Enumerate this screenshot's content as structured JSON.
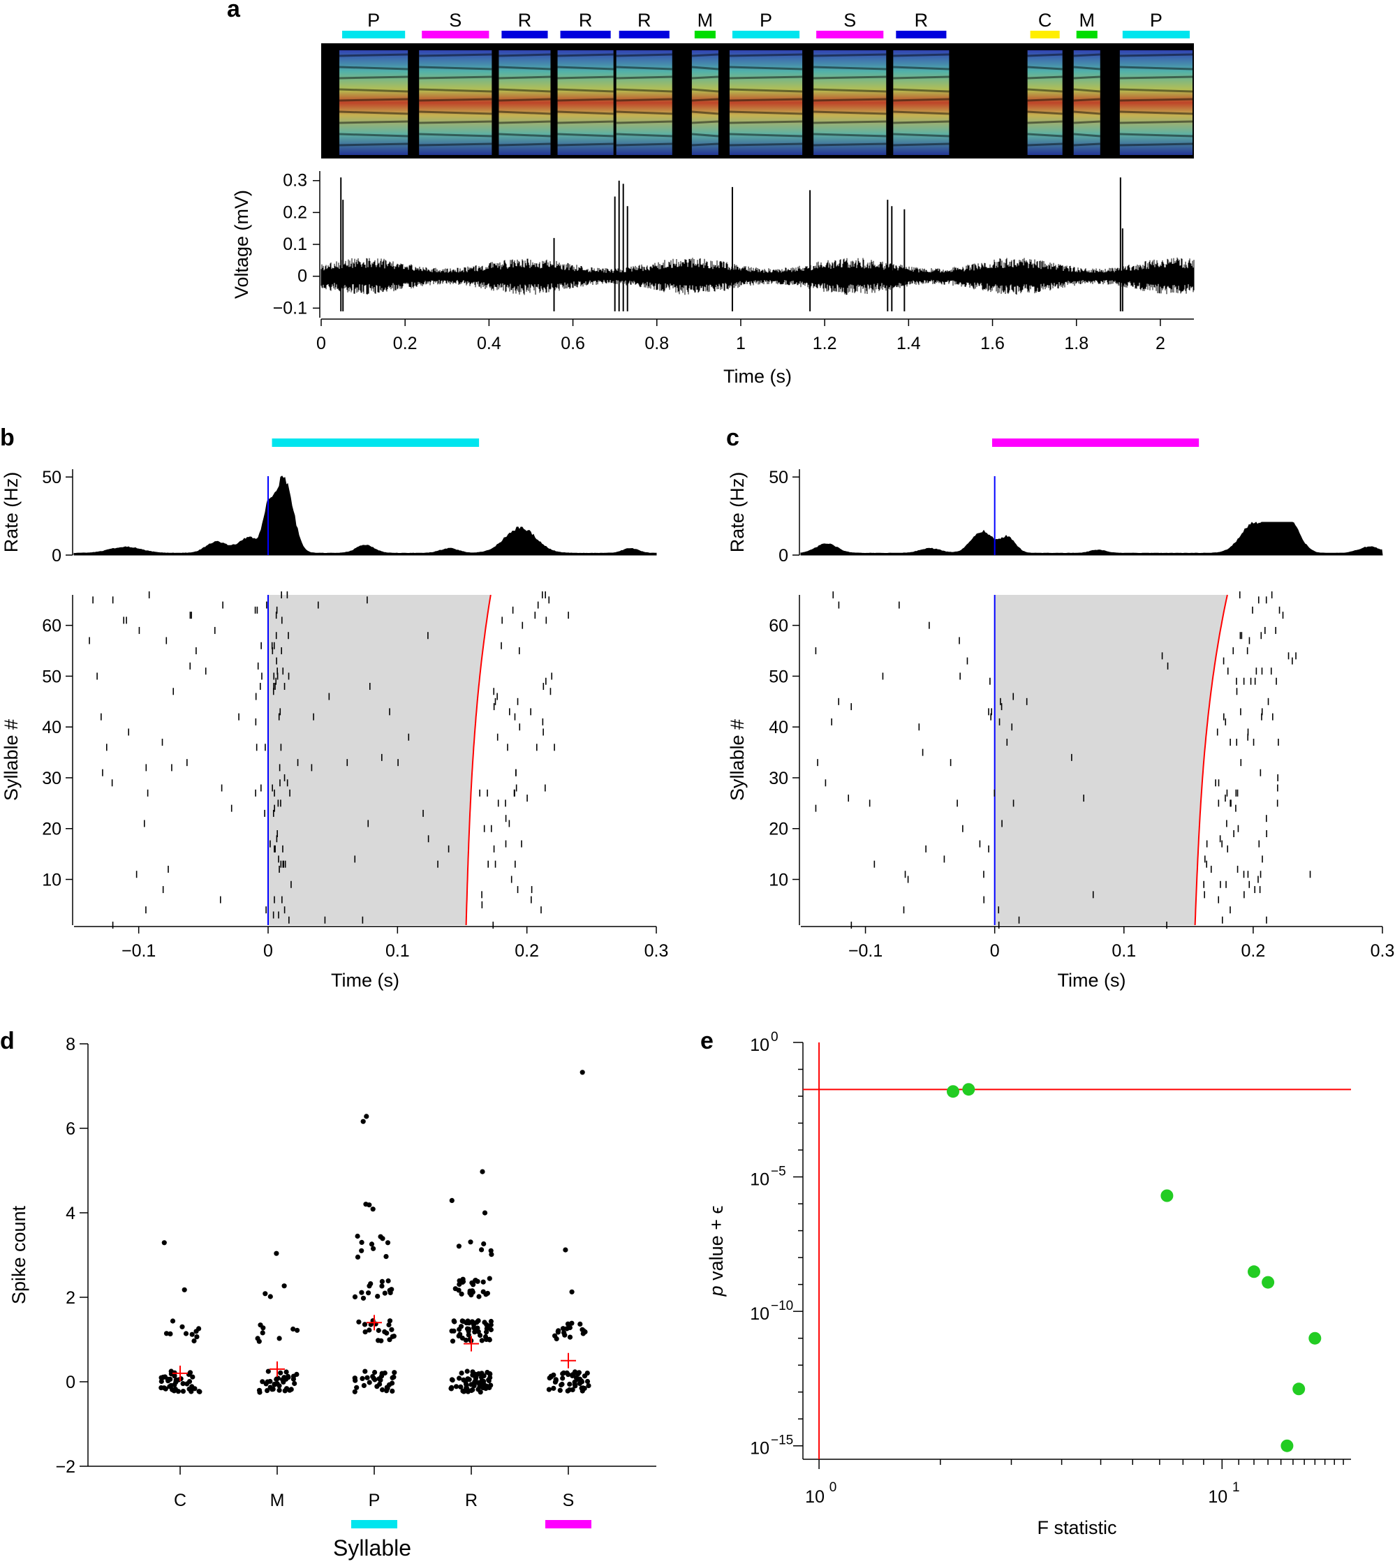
{
  "figure": {
    "panels": [
      "a",
      "b",
      "c",
      "d",
      "e"
    ]
  },
  "chart_data": [
    {
      "id": "a",
      "type": "line",
      "title": "",
      "song_syllables": [
        {
          "label": "P",
          "color": "#00e5ee",
          "start": 0.05,
          "end": 0.2
        },
        {
          "label": "S",
          "color": "#ff00ff",
          "start": 0.24,
          "end": 0.4
        },
        {
          "label": "R",
          "color": "#0000dd",
          "start": 0.43,
          "end": 0.54
        },
        {
          "label": "R",
          "color": "#0000dd",
          "start": 0.57,
          "end": 0.69
        },
        {
          "label": "R",
          "color": "#0000dd",
          "start": 0.71,
          "end": 0.83
        },
        {
          "label": "M",
          "color": "#00dd00",
          "start": 0.89,
          "end": 0.94
        },
        {
          "label": "P",
          "color": "#00e5ee",
          "start": 0.98,
          "end": 1.14
        },
        {
          "label": "S",
          "color": "#ff00ff",
          "start": 1.18,
          "end": 1.34
        },
        {
          "label": "R",
          "color": "#0000dd",
          "start": 1.37,
          "end": 1.49
        },
        {
          "label": "C",
          "color": "#ffee00",
          "start": 1.69,
          "end": 1.76
        },
        {
          "label": "M",
          "color": "#00dd00",
          "start": 1.8,
          "end": 1.85
        },
        {
          "label": "P",
          "color": "#00e5ee",
          "start": 1.91,
          "end": 2.07
        }
      ],
      "xlabel": "Time (s)",
      "ylabel": "Voltage (mV)",
      "xlim": [
        0,
        2.08
      ],
      "ylim": [
        -0.13,
        0.33
      ],
      "xticks": [
        0,
        0.2,
        0.4,
        0.6,
        0.8,
        1,
        1.2,
        1.4,
        1.6,
        1.8,
        2
      ],
      "xtick_labels": [
        "0",
        "0.2",
        "0.4",
        "0.6",
        "0.8",
        "1",
        "1.2",
        "1.4",
        "1.6",
        "1.8",
        "2"
      ],
      "yticks": [
        -0.1,
        0,
        0.1,
        0.2,
        0.3
      ],
      "ytick_labels": [
        "−0.1",
        "0",
        "0.1",
        "0.2",
        "0.3"
      ],
      "spikes": [
        {
          "t": 0.047,
          "v": 0.31
        },
        {
          "t": 0.052,
          "v": 0.24
        },
        {
          "t": 0.555,
          "v": 0.12
        },
        {
          "t": 0.7,
          "v": 0.25
        },
        {
          "t": 0.71,
          "v": 0.3
        },
        {
          "t": 0.72,
          "v": 0.29
        },
        {
          "t": 0.73,
          "v": 0.22
        },
        {
          "t": 0.98,
          "v": 0.28
        },
        {
          "t": 1.165,
          "v": 0.27
        },
        {
          "t": 1.35,
          "v": 0.24
        },
        {
          "t": 1.36,
          "v": 0.22
        },
        {
          "t": 1.39,
          "v": 0.21
        },
        {
          "t": 1.905,
          "v": 0.31
        },
        {
          "t": 1.91,
          "v": 0.15
        }
      ]
    },
    {
      "id": "b",
      "type": "scatter",
      "syllable_bar": {
        "label": "P",
        "color": "#00e5ee",
        "start": 0.003,
        "end": 0.163
      },
      "rate": {
        "ylabel": "Rate (Hz)",
        "ylim": [
          0,
          55
        ],
        "yticks": [
          0,
          50
        ],
        "ytick_labels": [
          "0",
          "50"
        ],
        "peak": 52,
        "bumps": [
          {
            "t": -0.11,
            "a": 4,
            "w": 0.012
          },
          {
            "t": -0.04,
            "a": 7,
            "w": 0.008
          },
          {
            "t": -0.015,
            "a": 10,
            "w": 0.008
          },
          {
            "t": 0.012,
            "a": 48,
            "w": 0.007
          },
          {
            "t": 0.0,
            "a": 20,
            "w": 0.004
          },
          {
            "t": 0.075,
            "a": 5,
            "w": 0.007
          },
          {
            "t": 0.14,
            "a": 3,
            "w": 0.007
          },
          {
            "t": 0.195,
            "a": 16,
            "w": 0.012
          },
          {
            "t": 0.28,
            "a": 3,
            "w": 0.006
          }
        ]
      },
      "raster": {
        "xlabel": "Time (s)",
        "ylabel": "Syllable #",
        "xlim": [
          -0.15,
          0.3
        ],
        "ylim": [
          1,
          66
        ],
        "xticks": [
          -0.1,
          0,
          0.1,
          0.2,
          0.3
        ],
        "xtick_labels": [
          "−0.1",
          "0",
          "0.1",
          "0.2",
          "0.3"
        ],
        "yticks": [
          10,
          20,
          30,
          40,
          50,
          60
        ],
        "ytick_labels": [
          "10",
          "20",
          "30",
          "40",
          "50",
          "60"
        ],
        "n_trials": 66,
        "offset_start": 0.153,
        "offset_end": 0.172,
        "seed": 7,
        "pre_spikes": 38,
        "onset_spikes": 70,
        "mid_spikes": 20,
        "post_spikes": 60,
        "post_center": 0.195
      }
    },
    {
      "id": "c",
      "type": "scatter",
      "syllable_bar": {
        "label": "S",
        "color": "#ff00ff",
        "start": -0.002,
        "end": 0.158
      },
      "rate": {
        "ylabel": "Rate (Hz)",
        "ylim": [
          0,
          55
        ],
        "yticks": [
          0,
          50
        ],
        "ytick_labels": [
          "0",
          "50"
        ],
        "peak": 21,
        "bumps": [
          {
            "t": -0.13,
            "a": 6,
            "w": 0.008
          },
          {
            "t": -0.05,
            "a": 3,
            "w": 0.008
          },
          {
            "t": -0.01,
            "a": 14,
            "w": 0.008
          },
          {
            "t": 0.01,
            "a": 10,
            "w": 0.006
          },
          {
            "t": 0.08,
            "a": 2,
            "w": 0.006
          },
          {
            "t": 0.2,
            "a": 18,
            "w": 0.01
          },
          {
            "t": 0.215,
            "a": 16,
            "w": 0.006
          },
          {
            "t": 0.228,
            "a": 20,
            "w": 0.008
          },
          {
            "t": 0.29,
            "a": 4,
            "w": 0.008
          }
        ]
      },
      "raster": {
        "xlabel": "Time (s)",
        "ylabel": "Syllable #",
        "xlim": [
          -0.15,
          0.3
        ],
        "ylim": [
          1,
          66
        ],
        "xticks": [
          -0.1,
          0,
          0.1,
          0.2,
          0.3
        ],
        "xtick_labels": [
          "−0.1",
          "0",
          "0.1",
          "0.2",
          "0.3"
        ],
        "yticks": [
          10,
          20,
          30,
          40,
          50,
          60
        ],
        "ytick_labels": [
          "10",
          "20",
          "30",
          "40",
          "50",
          "60"
        ],
        "n_trials": 66,
        "offset_start": 0.155,
        "offset_end": 0.18,
        "seed": 19,
        "pre_spikes": 30,
        "onset_spikes": 20,
        "mid_spikes": 6,
        "post_spikes": 90,
        "post_center": 0.21
      }
    },
    {
      "id": "d",
      "type": "scatter",
      "xlabel": "Syllable",
      "ylabel": "Spike count",
      "ylim": [
        -2,
        8
      ],
      "yticks": [
        -2,
        0,
        2,
        4,
        6,
        8
      ],
      "ytick_labels": [
        "−2",
        "0",
        "2",
        "4",
        "6",
        "8"
      ],
      "categories": [
        "C",
        "M",
        "P",
        "R",
        "S"
      ],
      "category_colors": [
        "",
        "",
        "#00e5ee",
        "",
        "#ff00ff"
      ],
      "means": [
        0.2,
        0.3,
        1.4,
        0.9,
        0.5
      ],
      "counts": [
        {
          "0": 40,
          "1": 10,
          "2": 1,
          "3": 1
        },
        {
          "0": 35,
          "1": 8,
          "2": 3,
          "3": 1
        },
        {
          "0": 30,
          "1": 18,
          "2": 14,
          "3": 10,
          "4": 3,
          "6": 2
        },
        {
          "0": 60,
          "1": 45,
          "2": 24,
          "3": 6,
          "4": 2,
          "5": 1
        },
        {
          "0": 45,
          "1": 18,
          "2": 1,
          "3": 1,
          "7": 1
        }
      ]
    },
    {
      "id": "e",
      "type": "scatter",
      "xlabel": "F statistic",
      "ylabel": "p value + ϵ",
      "ylabel_p": "p",
      "ylabel_rest": " value + ϵ",
      "xscale": "log",
      "yscale": "log",
      "xlim_log10": [
        -0.04,
        1.32
      ],
      "ylim_log10": [
        -15.5,
        0
      ],
      "xticks_log10": [
        0,
        1
      ],
      "xtick_base": [
        "10",
        "10"
      ],
      "xtick_exp": [
        "0",
        "1"
      ],
      "yticks_log10": [
        0,
        -5,
        -10,
        -15
      ],
      "ytick_base": [
        "10",
        "10",
        "10",
        "10"
      ],
      "ytick_exp": [
        "0",
        "−5",
        "−10",
        "−15"
      ],
      "threshold_x_log10": 0,
      "threshold_y_log10": -1.75,
      "point_color": "#22cc22",
      "points": [
        {
          "x": 2.15,
          "y": 0.015
        },
        {
          "x": 2.35,
          "y": 0.018
        },
        {
          "x": 7.3,
          "y": 2e-06
        },
        {
          "x": 12.0,
          "y": 3e-09
        },
        {
          "x": 13.0,
          "y": 1.2e-09
        },
        {
          "x": 17.0,
          "y": 1e-11
        },
        {
          "x": 15.5,
          "y": 1.3e-13
        },
        {
          "x": 14.5,
          "y": 1e-15
        }
      ]
    }
  ]
}
